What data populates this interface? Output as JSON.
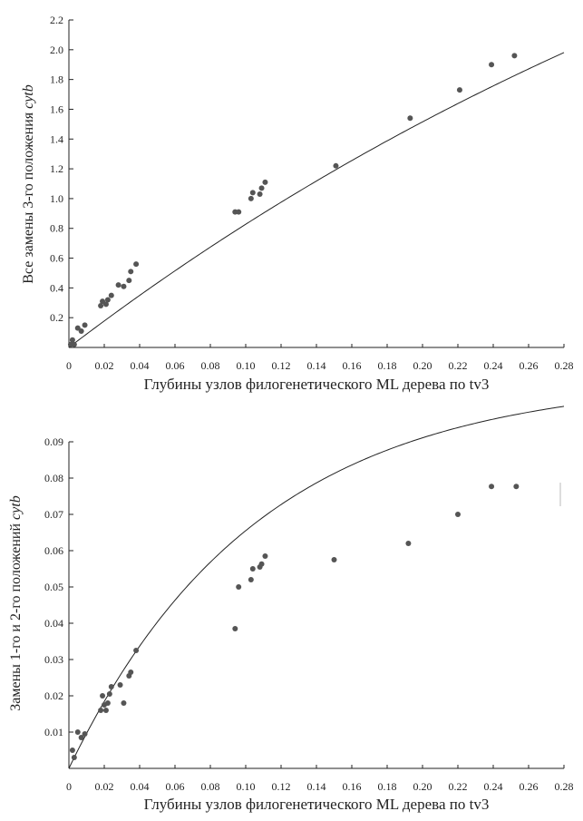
{
  "chart_data": [
    {
      "type": "scatter",
      "xlabel": "Глубины узлов филогенетического ML дерева по tv3",
      "ylabel": "Все замены 3-го положения",
      "ylabel_italic": "cytb",
      "xlim": [
        0,
        0.28
      ],
      "ylim": [
        0,
        2.2
      ],
      "x_ticks": [
        "0",
        "0.02",
        "0.04",
        "0.06",
        "0.08",
        "0.10",
        "0.12",
        "0.14",
        "0.16",
        "0.18",
        "0.20",
        "0.22",
        "0.24",
        "0.26",
        "0.28"
      ],
      "y_ticks": [
        "0.2",
        "0.4",
        "0.6",
        "0.8",
        "1.0",
        "1.2",
        "1.4",
        "1.6",
        "1.8",
        "2.0",
        "2.2"
      ],
      "y_tick_values": [
        0.2,
        0.4,
        0.6,
        0.8,
        1.0,
        1.2,
        1.4,
        1.6,
        1.8,
        2.0,
        2.2
      ],
      "points": [
        {
          "x": 0.001,
          "y": 0.02
        },
        {
          "x": 0.002,
          "y": 0.05
        },
        {
          "x": 0.003,
          "y": 0.02
        },
        {
          "x": 0.005,
          "y": 0.13
        },
        {
          "x": 0.007,
          "y": 0.11
        },
        {
          "x": 0.009,
          "y": 0.15
        },
        {
          "x": 0.018,
          "y": 0.28
        },
        {
          "x": 0.019,
          "y": 0.31
        },
        {
          "x": 0.021,
          "y": 0.29
        },
        {
          "x": 0.022,
          "y": 0.32
        },
        {
          "x": 0.024,
          "y": 0.35
        },
        {
          "x": 0.028,
          "y": 0.42
        },
        {
          "x": 0.031,
          "y": 0.41
        },
        {
          "x": 0.034,
          "y": 0.45
        },
        {
          "x": 0.035,
          "y": 0.51
        },
        {
          "x": 0.038,
          "y": 0.56
        },
        {
          "x": 0.094,
          "y": 0.91
        },
        {
          "x": 0.096,
          "y": 0.91
        },
        {
          "x": 0.103,
          "y": 1.0
        },
        {
          "x": 0.104,
          "y": 1.04
        },
        {
          "x": 0.108,
          "y": 1.03
        },
        {
          "x": 0.109,
          "y": 1.07
        },
        {
          "x": 0.111,
          "y": 1.11
        },
        {
          "x": 0.151,
          "y": 1.22
        },
        {
          "x": 0.193,
          "y": 1.54
        },
        {
          "x": 0.221,
          "y": 1.73
        },
        {
          "x": 0.239,
          "y": 1.9
        },
        {
          "x": 0.252,
          "y": 1.96
        }
      ],
      "fit_curve": {
        "a": 4.9,
        "b": 1.85
      }
    },
    {
      "type": "scatter",
      "xlabel": "Глубины узлов филогенетического ML дерева по tv3",
      "ylabel": "Замены 1-го и 2-го положений",
      "ylabel_italic": "cytb",
      "xlim": [
        0,
        0.28
      ],
      "ylim": [
        0,
        0.09
      ],
      "x_ticks": [
        "0",
        "0.02",
        "0.04",
        "0.06",
        "0.08",
        "0.10",
        "0.12",
        "0.14",
        "0.16",
        "0.18",
        "0.20",
        "0.22",
        "0.24",
        "0.26",
        "0.28"
      ],
      "y_ticks": [
        "0.01",
        "0.02",
        "0.03",
        "0.04",
        "0.05",
        "0.06",
        "0.07",
        "0.08",
        "0.09"
      ],
      "y_tick_values": [
        0.01,
        0.02,
        0.03,
        0.04,
        0.05,
        0.06,
        0.07,
        0.08,
        0.09
      ],
      "points": [
        {
          "x": 0.002,
          "y": 0.005
        },
        {
          "x": 0.003,
          "y": 0.003
        },
        {
          "x": 0.005,
          "y": 0.01
        },
        {
          "x": 0.007,
          "y": 0.0085
        },
        {
          "x": 0.009,
          "y": 0.0095
        },
        {
          "x": 0.018,
          "y": 0.016
        },
        {
          "x": 0.019,
          "y": 0.02
        },
        {
          "x": 0.02,
          "y": 0.0175
        },
        {
          "x": 0.021,
          "y": 0.016
        },
        {
          "x": 0.022,
          "y": 0.018
        },
        {
          "x": 0.023,
          "y": 0.0205
        },
        {
          "x": 0.024,
          "y": 0.0225
        },
        {
          "x": 0.029,
          "y": 0.023
        },
        {
          "x": 0.031,
          "y": 0.018
        },
        {
          "x": 0.034,
          "y": 0.0255
        },
        {
          "x": 0.035,
          "y": 0.0265
        },
        {
          "x": 0.038,
          "y": 0.0325
        },
        {
          "x": 0.094,
          "y": 0.0385
        },
        {
          "x": 0.096,
          "y": 0.05
        },
        {
          "x": 0.103,
          "y": 0.052
        },
        {
          "x": 0.104,
          "y": 0.055
        },
        {
          "x": 0.108,
          "y": 0.0555
        },
        {
          "x": 0.109,
          "y": 0.0563
        },
        {
          "x": 0.111,
          "y": 0.0585
        },
        {
          "x": 0.15,
          "y": 0.0575
        },
        {
          "x": 0.192,
          "y": 0.062
        },
        {
          "x": 0.22,
          "y": 0.07
        },
        {
          "x": 0.239,
          "y": 0.0777
        },
        {
          "x": 0.253,
          "y": 0.0777
        }
      ],
      "fit_curve": {
        "a": 0.1075,
        "b": 9.4
      }
    }
  ]
}
